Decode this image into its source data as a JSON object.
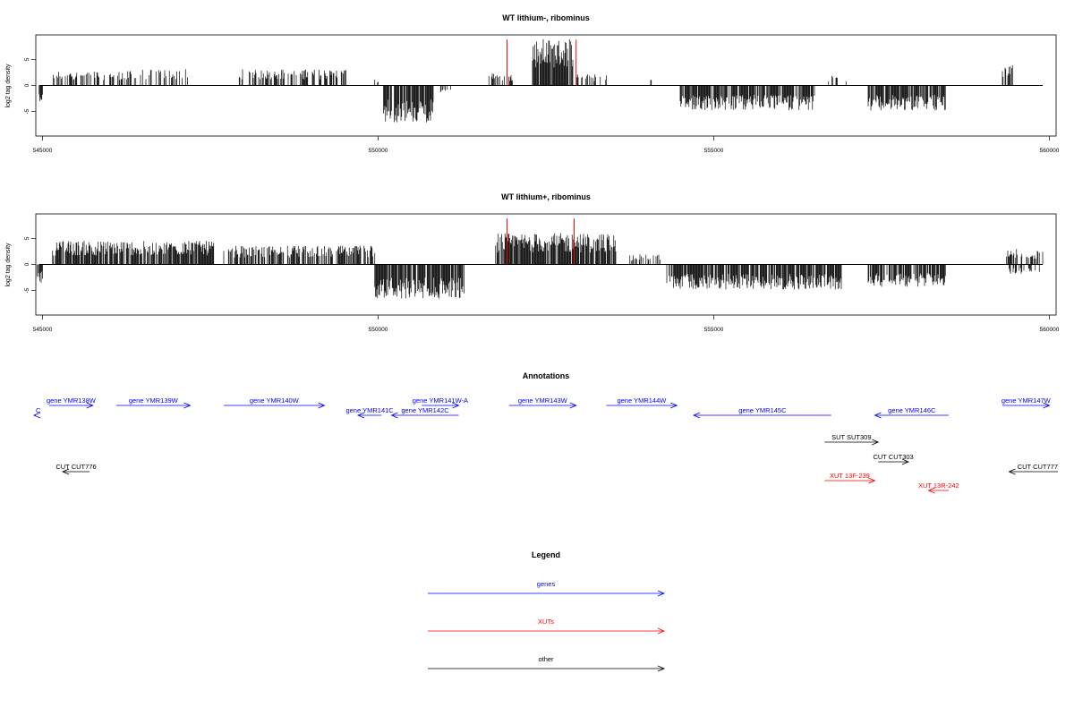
{
  "chart_data": [
    {
      "type": "bar",
      "title": "WT lithium-, ribominus",
      "ylabel": "log2 tag density",
      "xlim": [
        544900,
        560100
      ],
      "ylim": [
        -9.7,
        9.7
      ],
      "xticks": [
        545000,
        550000,
        555000,
        560000
      ],
      "yticks": [
        -5,
        0,
        5
      ],
      "highlight_positions": [
        551920,
        552950
      ],
      "highlight_color": "#ff0000",
      "bar_color": "#000000",
      "segments": [
        {
          "start": 544950,
          "end": 545000,
          "amp": 2.5,
          "density": 0.9,
          "sign": -1
        },
        {
          "start": 545150,
          "end": 546300,
          "amp": 2.3,
          "density": 0.45,
          "sign": 1
        },
        {
          "start": 546300,
          "end": 547200,
          "amp": 2.6,
          "density": 0.35,
          "sign": 1
        },
        {
          "start": 547850,
          "end": 548900,
          "amp": 2.6,
          "density": 0.45,
          "sign": 1
        },
        {
          "start": 548900,
          "end": 549550,
          "amp": 2.6,
          "density": 0.45,
          "sign": 1
        },
        {
          "start": 549950,
          "end": 550050,
          "amp": 1.0,
          "density": 0.2,
          "sign": 1
        },
        {
          "start": 550080,
          "end": 550820,
          "amp": 6.0,
          "density": 0.9,
          "sign": -1
        },
        {
          "start": 550920,
          "end": 551100,
          "amp": 1.2,
          "density": 0.3,
          "sign": -1
        },
        {
          "start": 551650,
          "end": 552050,
          "amp": 2.0,
          "density": 0.3,
          "sign": 1
        },
        {
          "start": 552300,
          "end": 552900,
          "amp": 7.5,
          "density": 0.95,
          "sign": 1
        },
        {
          "start": 552950,
          "end": 553400,
          "amp": 1.8,
          "density": 0.4,
          "sign": 1
        },
        {
          "start": 554050,
          "end": 554150,
          "amp": 1.2,
          "density": 0.2,
          "sign": 1
        },
        {
          "start": 554500,
          "end": 556500,
          "amp": 4.0,
          "density": 0.85,
          "sign": -1
        },
        {
          "start": 556700,
          "end": 557100,
          "amp": 1.5,
          "density": 0.25,
          "sign": 1
        },
        {
          "start": 557300,
          "end": 558450,
          "amp": 4.0,
          "density": 0.85,
          "sign": -1
        },
        {
          "start": 559300,
          "end": 559450,
          "amp": 3.5,
          "density": 0.6,
          "sign": 1
        }
      ]
    },
    {
      "type": "bar",
      "title": "WT lithium+, ribominus",
      "ylabel": "log2 tag density",
      "xlim": [
        544900,
        560100
      ],
      "ylim": [
        -9.7,
        9.7
      ],
      "xticks": [
        545000,
        550000,
        555000,
        560000
      ],
      "yticks": [
        -5,
        0,
        5
      ],
      "highlight_positions": [
        551920,
        552920
      ],
      "highlight_color": "#ff0000",
      "bar_color": "#000000",
      "segments": [
        {
          "start": 544920,
          "end": 545000,
          "amp": 3.0,
          "density": 0.9,
          "sign": -1
        },
        {
          "start": 545150,
          "end": 547550,
          "amp": 3.8,
          "density": 0.8,
          "sign": 1
        },
        {
          "start": 547700,
          "end": 549950,
          "amp": 3.0,
          "density": 0.7,
          "sign": 1
        },
        {
          "start": 549950,
          "end": 551300,
          "amp": 5.5,
          "density": 0.9,
          "sign": -1
        },
        {
          "start": 551750,
          "end": 553550,
          "amp": 5.0,
          "density": 0.85,
          "sign": 1
        },
        {
          "start": 553750,
          "end": 554200,
          "amp": 1.6,
          "density": 0.3,
          "sign": 1
        },
        {
          "start": 554300,
          "end": 556900,
          "amp": 4.0,
          "density": 0.85,
          "sign": -1
        },
        {
          "start": 557300,
          "end": 558450,
          "amp": 3.6,
          "density": 0.8,
          "sign": -1
        },
        {
          "start": 559350,
          "end": 559900,
          "amp": 2.5,
          "density": 0.5,
          "sign": 1
        },
        {
          "start": 559400,
          "end": 559850,
          "amp": 1.5,
          "density": 0.4,
          "sign": -1
        }
      ]
    }
  ],
  "annotations": {
    "title": "Annotations",
    "items": [
      {
        "label": "C",
        "start": 544550,
        "end": 544900,
        "strand": "-",
        "row": 1,
        "color": "#0000ff"
      },
      {
        "label": "gene YMR138W",
        "start": 545100,
        "end": 545750,
        "strand": "+",
        "row": 0,
        "color": "#0000ff"
      },
      {
        "label": "gene YMR139W",
        "start": 546100,
        "end": 547200,
        "strand": "+",
        "row": 0,
        "color": "#0000ff"
      },
      {
        "label": "gene YMR140W",
        "start": 547700,
        "end": 549200,
        "strand": "+",
        "row": 0,
        "color": "#0000ff"
      },
      {
        "label": "gene YMR141C",
        "start": 549700,
        "end": 550050,
        "strand": "-",
        "row": 1,
        "color": "#0000ff"
      },
      {
        "label": "gene YMR142C",
        "start": 550200,
        "end": 551200,
        "strand": "-",
        "row": 1,
        "color": "#0000ff"
      },
      {
        "label": "gene YMR141W-A",
        "start": 550650,
        "end": 551200,
        "strand": "+",
        "row": 0,
        "color": "#0000ff"
      },
      {
        "label": "gene YMR143W",
        "start": 551950,
        "end": 552950,
        "strand": "+",
        "row": 0,
        "color": "#0000ff"
      },
      {
        "label": "gene YMR144W",
        "start": 553400,
        "end": 554450,
        "strand": "+",
        "row": 0,
        "color": "#0000ff"
      },
      {
        "label": "gene YMR145C",
        "start": 554700,
        "end": 556750,
        "strand": "-",
        "row": 1,
        "color": "#0000ff"
      },
      {
        "label": "gene YMR146C",
        "start": 557400,
        "end": 558500,
        "strand": "-",
        "row": 1,
        "color": "#0000ff"
      },
      {
        "label": "gene YMR147W",
        "start": 559300,
        "end": 560000,
        "strand": "+",
        "row": 0,
        "color": "#0000ff"
      },
      {
        "label": "SUT SUT309",
        "start": 556650,
        "end": 557450,
        "strand": "+",
        "row": 2,
        "color": "#000000"
      },
      {
        "label": "CUT CUT303",
        "start": 557450,
        "end": 557900,
        "strand": "+",
        "row": 3,
        "color": "#000000"
      },
      {
        "label": "CUT CUT776",
        "start": 545300,
        "end": 545700,
        "strand": "-",
        "row": 4,
        "color": "#000000"
      },
      {
        "label": "CUT CUT777",
        "start": 559400,
        "end": 560200,
        "strand": "-",
        "row": 4,
        "color": "#000000"
      },
      {
        "label": "XUT 13F-239",
        "start": 556650,
        "end": 557400,
        "strand": "+",
        "row": 5,
        "color": "#ff0000"
      },
      {
        "label": "XUT 13R-242",
        "start": 558200,
        "end": 558500,
        "strand": "-",
        "row": 6,
        "color": "#ff0000"
      }
    ]
  },
  "legend": {
    "title": "Legend",
    "items": [
      {
        "label": "genes",
        "color": "#0000ff"
      },
      {
        "label": "XUTs",
        "color": "#ff0000"
      },
      {
        "label": "other",
        "color": "#000000"
      }
    ]
  }
}
